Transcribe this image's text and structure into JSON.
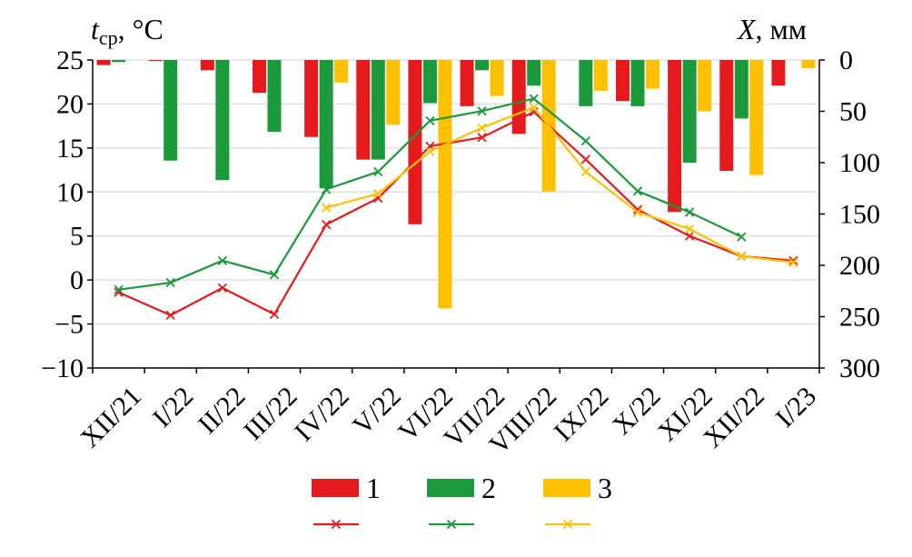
{
  "chart_data": {
    "type": "bar+line",
    "categories": [
      "XII/21",
      "I/22",
      "II/22",
      "III/22",
      "IV/22",
      "V/22",
      "VI/22",
      "VII/22",
      "VIII/22",
      "IX/22",
      "X/22",
      "XI/22",
      "XII/22",
      "I/23"
    ],
    "left_axis": {
      "title_main": "t",
      "title_sub": "ср",
      "title_unit": ", °C",
      "range": [
        -10,
        25
      ],
      "ticks": [
        25,
        20,
        15,
        10,
        5,
        0,
        -5,
        -10
      ],
      "tick_labels": [
        "25",
        "20",
        "15",
        "10",
        "5",
        "0",
        "−5",
        "−10"
      ]
    },
    "right_axis": {
      "title_main": "X",
      "title_unit": ", мм",
      "range": [
        0,
        300
      ],
      "reversed": true,
      "ticks": [
        0,
        50,
        100,
        150,
        200,
        250,
        300
      ],
      "tick_labels": [
        "0",
        "50",
        "100",
        "150",
        "200",
        "250",
        "300"
      ]
    },
    "precipitation_series": [
      {
        "name": "1",
        "color": "#e41a1c",
        "values": [
          5,
          1,
          10,
          32,
          75,
          97,
          160,
          45,
          72,
          0,
          40,
          148,
          108,
          25
        ]
      },
      {
        "name": "2",
        "color": "#1a9a3a",
        "values": [
          2,
          98,
          117,
          70,
          125,
          97,
          42,
          10,
          25,
          45,
          45,
          100,
          57,
          null
        ]
      },
      {
        "name": "3",
        "color": "#ffc000",
        "values": [
          null,
          null,
          null,
          null,
          22,
          63,
          242,
          35,
          128,
          30,
          28,
          50,
          112,
          8
        ]
      }
    ],
    "temperature_series": [
      {
        "name": "1",
        "color": "#e41a1c",
        "values": [
          -1.4,
          -4.0,
          -0.9,
          -3.9,
          6.3,
          9.3,
          15.2,
          16.2,
          19.1,
          13.7,
          8.0,
          5.0,
          2.7,
          2.2
        ]
      },
      {
        "name": "2",
        "color": "#1a9a3a",
        "values": [
          -1.1,
          -0.3,
          2.2,
          0.6,
          10.3,
          12.3,
          18.1,
          19.2,
          20.6,
          15.8,
          10.1,
          7.7,
          4.9,
          null
        ]
      },
      {
        "name": "3",
        "color": "#ffc000",
        "values": [
          null,
          null,
          null,
          null,
          8.2,
          9.8,
          14.6,
          17.3,
          19.6,
          12.3,
          7.7,
          5.8,
          2.7,
          2.0
        ]
      }
    ],
    "legend": {
      "entries": [
        "1",
        "2",
        "3"
      ],
      "placement": "bottom"
    }
  }
}
